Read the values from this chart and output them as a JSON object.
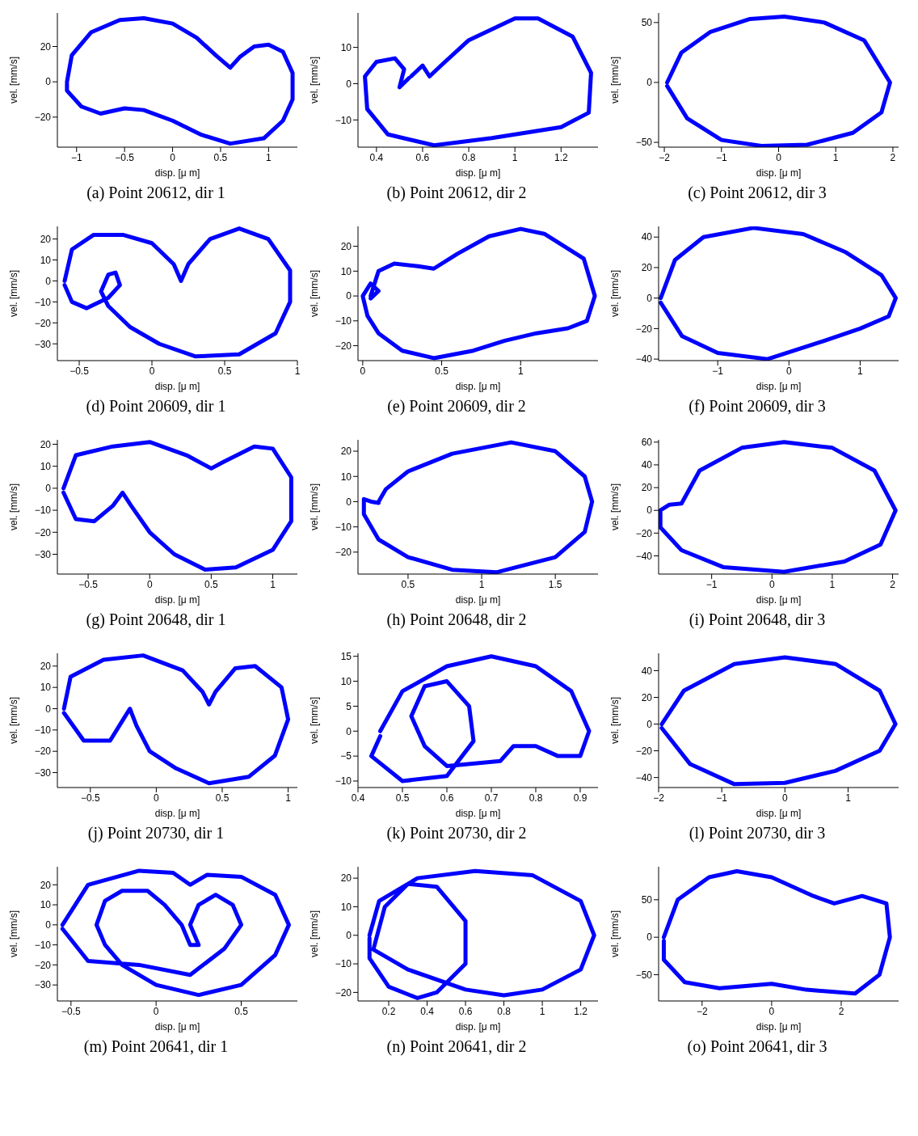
{
  "chart_data": [
    {
      "type": "line",
      "title": "(a) Point 20612, dir 1",
      "xlabel": "disp. [μ m]",
      "ylabel": "vel. [mm/s]",
      "xlim": [
        -1.2,
        1.3
      ],
      "ylim": [
        -37,
        39
      ],
      "xticks": [
        -1,
        -0.5,
        0,
        0.5,
        1
      ],
      "yticks": [
        -20,
        0,
        20
      ],
      "line_style": "solid",
      "series": [
        {
          "color": "#0000ff",
          "x": [
            -1.1,
            -1.05,
            -0.85,
            -0.55,
            -0.3,
            0,
            0.25,
            0.45,
            0.6,
            0.7,
            0.85,
            1.0,
            1.15,
            1.25,
            1.25,
            1.15,
            0.95,
            0.6,
            0.3,
            0,
            -0.3,
            -0.5,
            -0.75,
            -0.95,
            -1.1,
            -1.1
          ],
          "values": [
            0,
            15,
            28,
            35,
            36,
            33,
            25,
            15,
            8,
            14,
            20,
            21,
            17,
            5,
            -10,
            -22,
            -32,
            -35,
            -30,
            -22,
            -16,
            -15,
            -18,
            -14,
            -5,
            -1
          ]
        }
      ]
    },
    {
      "type": "line",
      "title": "(b) Point 20612, dir 2",
      "xlabel": "disp. [μ m]",
      "ylabel": "vel. [mm/s]",
      "xlim": [
        0.32,
        1.36
      ],
      "ylim": [
        -17.5,
        19.5
      ],
      "xticks": [
        0.4,
        0.6,
        0.8,
        1,
        1.2
      ],
      "yticks": [
        -10,
        0,
        10
      ],
      "line_style": "solid",
      "series": [
        {
          "color": "#0000ff",
          "x": [
            0.55,
            0.6,
            0.63,
            0.68,
            0.8,
            1.0,
            1.1,
            1.25,
            1.33,
            1.32,
            1.2,
            0.9,
            0.65,
            0.45,
            0.36,
            0.35,
            0.4,
            0.48,
            0.52,
            0.5,
            0.54
          ],
          "values": [
            2,
            5,
            2,
            5,
            12,
            18,
            18,
            13,
            3,
            -8,
            -12,
            -15,
            -17,
            -14,
            -7,
            2,
            6,
            7,
            4,
            -1,
            1.5
          ]
        }
      ]
    },
    {
      "type": "line",
      "title": "(c) Point 20612, dir 3",
      "xlabel": "disp. [μ m]",
      "ylabel": "vel. [mm/s]",
      "xlim": [
        -2.1,
        2.1
      ],
      "ylim": [
        -54,
        58
      ],
      "xticks": [
        -2,
        -1,
        0,
        1,
        2
      ],
      "yticks": [
        -50,
        0,
        50
      ],
      "line_style": "solid",
      "series": [
        {
          "color": "#0000ff",
          "x": [
            -1.95,
            -1.7,
            -1.2,
            -0.5,
            0.1,
            0.8,
            1.5,
            1.95,
            1.8,
            1.3,
            0.5,
            -0.3,
            -1.0,
            -1.6,
            -1.95
          ],
          "values": [
            0,
            25,
            42,
            53,
            55,
            50,
            35,
            0,
            -25,
            -42,
            -52,
            -53,
            -48,
            -30,
            -3
          ]
        }
      ]
    },
    {
      "type": "line",
      "title": "(d) Point 20609, dir 1",
      "xlabel": "disp. [μ m]",
      "ylabel": "vel. [mm/s]",
      "xlim": [
        -0.65,
        1.0
      ],
      "ylim": [
        -38,
        26
      ],
      "xticks": [
        -0.5,
        0,
        0.5,
        1
      ],
      "yticks": [
        -30,
        -20,
        -10,
        0,
        10,
        20
      ],
      "line_style": "solid",
      "series": [
        {
          "color": "#0000ff",
          "x": [
            -0.6,
            -0.55,
            -0.4,
            -0.2,
            0,
            0.15,
            0.2,
            0.25,
            0.4,
            0.6,
            0.8,
            0.95,
            0.95,
            0.85,
            0.6,
            0.3,
            0.05,
            -0.15,
            -0.3,
            -0.35,
            -0.3,
            -0.25,
            -0.22,
            -0.3,
            -0.45,
            -0.55,
            -0.6
          ],
          "values": [
            0,
            15,
            22,
            22,
            18,
            8,
            0,
            8,
            20,
            25,
            20,
            5,
            -10,
            -25,
            -35,
            -36,
            -30,
            -22,
            -12,
            -5,
            3,
            4,
            -2,
            -8,
            -13,
            -10,
            -2
          ]
        }
      ]
    },
    {
      "type": "line",
      "title": "(e) Point 20609, dir 2",
      "xlabel": "disp. [μ m]",
      "ylabel": "vel. [mm/s]",
      "xlim": [
        -0.03,
        1.49
      ],
      "ylim": [
        -26,
        28
      ],
      "xticks": [
        0,
        0.5,
        1
      ],
      "yticks": [
        -20,
        -10,
        0,
        10,
        20
      ],
      "line_style": "solid",
      "series": [
        {
          "color": "#0000ff",
          "x": [
            0.05,
            0.1,
            0.2,
            0.35,
            0.45,
            0.6,
            0.8,
            1.0,
            1.15,
            1.4,
            1.47,
            1.42,
            1.3,
            1.1,
            0.9,
            0.7,
            0.45,
            0.25,
            0.1,
            0.03,
            0,
            0.05,
            0.1,
            0.05
          ],
          "values": [
            0,
            10,
            13,
            12,
            11,
            17,
            24,
            27,
            25,
            15,
            0,
            -10,
            -13,
            -15,
            -18,
            -22,
            -25,
            -22,
            -15,
            -8,
            0,
            5,
            2,
            -1
          ]
        }
      ]
    },
    {
      "type": "line",
      "title": "(f) Point 20609, dir 3",
      "xlabel": "disp. [μ m]",
      "ylabel": "vel. [mm/s]",
      "xlim": [
        -1.83,
        1.54
      ],
      "ylim": [
        -41,
        47
      ],
      "xticks": [
        -1,
        0,
        1
      ],
      "yticks": [
        -40,
        -20,
        0,
        20,
        40
      ],
      "line_style": "solid",
      "series": [
        {
          "color": "#0000ff",
          "x": [
            -1.8,
            -1.6,
            -1.2,
            -0.5,
            0.2,
            0.8,
            1.3,
            1.5,
            1.4,
            1.0,
            0.5,
            -0.3,
            -1.0,
            -1.5,
            -1.8
          ],
          "values": [
            0,
            25,
            40,
            46,
            42,
            30,
            15,
            0,
            -12,
            -20,
            -28,
            -40,
            -36,
            -25,
            -3
          ]
        }
      ]
    },
    {
      "type": "line",
      "title": "(g) Point 20648, dir 1",
      "xlabel": "disp. [μ m]",
      "ylabel": "vel. [mm/s]",
      "xlim": [
        -0.75,
        1.2
      ],
      "ylim": [
        -39,
        22
      ],
      "xticks": [
        -0.5,
        0,
        0.5,
        1
      ],
      "yticks": [
        -30,
        -20,
        -10,
        0,
        10,
        20
      ],
      "line_style": "solid",
      "series": [
        {
          "color": "#0000ff",
          "x": [
            -0.7,
            -0.6,
            -0.3,
            0,
            0.3,
            0.5,
            0.6,
            0.85,
            1.0,
            1.15,
            1.15,
            1.0,
            0.7,
            0.45,
            0.2,
            0,
            -0.15,
            -0.22,
            -0.3,
            -0.45,
            -0.6,
            -0.7
          ],
          "values": [
            0,
            15,
            19,
            21,
            15,
            9,
            12,
            19,
            18,
            5,
            -15,
            -28,
            -36,
            -37,
            -30,
            -20,
            -8,
            -2,
            -8,
            -15,
            -14,
            -2
          ]
        }
      ]
    },
    {
      "type": "line",
      "title": "(h) Point 20648, dir 2",
      "xlabel": "disp. [μ m]",
      "ylabel": "vel. [mm/s]",
      "xlim": [
        0.16,
        1.79
      ],
      "ylim": [
        -28.7,
        24.5
      ],
      "xticks": [
        0.5,
        1,
        1.5
      ],
      "yticks": [
        -20,
        -10,
        0,
        10,
        20
      ],
      "line_style": "solid",
      "series": [
        {
          "color": "#0000ff",
          "x": [
            0.3,
            0.35,
            0.5,
            0.8,
            1.2,
            1.5,
            1.7,
            1.75,
            1.7,
            1.5,
            1.1,
            0.8,
            0.5,
            0.3,
            0.2,
            0.2,
            0.25,
            0.3
          ],
          "values": [
            0,
            5,
            12,
            19,
            23.5,
            20,
            10,
            0,
            -12,
            -22,
            -28,
            -27,
            -22,
            -15,
            -5,
            1,
            0,
            -0.5
          ]
        }
      ]
    },
    {
      "type": "line",
      "title": "(i) Point 20648, dir 3",
      "xlabel": "disp. [μ m]",
      "ylabel": "vel. [mm/s]",
      "xlim": [
        -1.88,
        2.1
      ],
      "ylim": [
        -56,
        62
      ],
      "xticks": [
        -1,
        0,
        1,
        2
      ],
      "yticks": [
        -40,
        -20,
        0,
        20,
        40,
        60
      ],
      "line_style": "solid",
      "series": [
        {
          "color": "#0000ff",
          "x": [
            -1.85,
            -1.7,
            -1.5,
            -1.2,
            -0.5,
            0.2,
            1,
            1.7,
            2.05,
            1.8,
            1.2,
            0.2,
            -0.8,
            -1.5,
            -1.85,
            -1.85
          ],
          "values": [
            0,
            5,
            6,
            35,
            55,
            60,
            55,
            35,
            0,
            -30,
            -45,
            -54,
            -50,
            -35,
            -15,
            -2
          ]
        }
      ]
    },
    {
      "type": "line",
      "title": "(j) Point 20730, dir 1",
      "xlabel": "disp. [μ m]",
      "ylabel": "vel. [mm/s]",
      "xlim": [
        -0.75,
        1.07
      ],
      "ylim": [
        -37,
        26
      ],
      "xticks": [
        -0.5,
        0,
        0.5,
        1
      ],
      "yticks": [
        -30,
        -20,
        -10,
        0,
        10,
        20
      ],
      "line_style": "solid",
      "series": [
        {
          "color": "#0000ff",
          "x": [
            -0.7,
            -0.65,
            -0.4,
            -0.1,
            0.2,
            0.35,
            0.4,
            0.45,
            0.6,
            0.75,
            0.95,
            1.0,
            0.9,
            0.7,
            0.4,
            0.15,
            -0.05,
            -0.15,
            -0.2,
            -0.25,
            -0.35,
            -0.55,
            -0.7
          ],
          "values": [
            0,
            15,
            23,
            25,
            18,
            8,
            2,
            8,
            19,
            20,
            10,
            -5,
            -22,
            -32,
            -35,
            -28,
            -20,
            -8,
            0,
            -5,
            -15,
            -15,
            -2
          ]
        }
      ]
    },
    {
      "type": "line",
      "title": "(k) Point 20730, dir 2",
      "xlabel": "disp. [μ m]",
      "ylabel": "vel. [mm/s]",
      "xlim": [
        0.4,
        0.94
      ],
      "ylim": [
        -11.3,
        15.6
      ],
      "xticks": [
        0.4,
        0.5,
        0.6,
        0.7,
        0.8,
        0.9
      ],
      "yticks": [
        -10,
        -5,
        0,
        5,
        10,
        15
      ],
      "line_style": "solid",
      "series": [
        {
          "color": "#0000ff",
          "x": [
            0.45,
            0.5,
            0.6,
            0.7,
            0.8,
            0.88,
            0.92,
            0.9,
            0.85,
            0.8,
            0.75,
            0.72,
            0.6,
            0.55,
            0.52,
            0.55,
            0.6,
            0.65,
            0.66,
            0.6,
            0.5,
            0.43,
            0.45
          ],
          "values": [
            0,
            8,
            13,
            15,
            13,
            8,
            0,
            -5,
            -5,
            -3,
            -3,
            -6,
            -7,
            -3,
            3,
            9,
            10,
            5,
            -2,
            -9,
            -10,
            -5,
            -1
          ]
        }
      ]
    },
    {
      "type": "line",
      "title": "(l) Point 20730, dir 3",
      "xlabel": "disp. [μ m]",
      "ylabel": "vel. [mm/s]",
      "xlim": [
        -2.0,
        1.8
      ],
      "ylim": [
        -47.5,
        53
      ],
      "xticks": [
        -2,
        -1,
        0,
        1
      ],
      "yticks": [
        -40,
        -20,
        0,
        20,
        40
      ],
      "line_style": "solid",
      "series": [
        {
          "color": "#0000ff",
          "x": [
            -1.95,
            -1.6,
            -0.8,
            0,
            0.8,
            1.5,
            1.75,
            1.5,
            0.8,
            0,
            -0.8,
            -1.5,
            -1.95
          ],
          "values": [
            0,
            25,
            45,
            50,
            45,
            25,
            0,
            -20,
            -35,
            -44,
            -45,
            -30,
            -3
          ]
        }
      ]
    },
    {
      "type": "line",
      "title": "(m) Point 20641, dir 1",
      "xlabel": "disp. [μ m]",
      "ylabel": "vel. [mm/s]",
      "xlim": [
        -0.58,
        0.83
      ],
      "ylim": [
        -38,
        29
      ],
      "xticks": [
        -0.5,
        0,
        0.5
      ],
      "yticks": [
        -30,
        -20,
        -10,
        0,
        10,
        20
      ],
      "line_style": "solid",
      "series": [
        {
          "color": "#0000ff",
          "x": [
            -0.55,
            -0.4,
            -0.1,
            0.1,
            0.2,
            0.3,
            0.5,
            0.7,
            0.78,
            0.7,
            0.5,
            0.25,
            0,
            -0.2,
            -0.3,
            -0.35,
            -0.3,
            -0.2,
            -0.05,
            0.05,
            0.15,
            0.2,
            0.25,
            0.2,
            0.25,
            0.35,
            0.45,
            0.5,
            0.4,
            0.2,
            -0.1,
            -0.4,
            -0.55
          ],
          "values": [
            0,
            20,
            27,
            26,
            20,
            25,
            24,
            15,
            0,
            -15,
            -30,
            -35,
            -30,
            -20,
            -10,
            0,
            12,
            17,
            17,
            10,
            0,
            -10,
            -10,
            0,
            10,
            15,
            10,
            0,
            -12,
            -25,
            -20,
            -18,
            -2
          ]
        }
      ]
    },
    {
      "type": "line",
      "title": "(n) Point 20641, dir 2",
      "xlabel": "disp. [μ m]",
      "ylabel": "vel. [mm/s]",
      "xlim": [
        0.04,
        1.29
      ],
      "ylim": [
        -23,
        24
      ],
      "xticks": [
        0.2,
        0.4,
        0.6,
        0.8,
        1,
        1.2
      ],
      "yticks": [
        -20,
        -10,
        0,
        10,
        20
      ],
      "line_style": "solid",
      "series": [
        {
          "color": "#0000ff",
          "x": [
            0.1,
            0.15,
            0.35,
            0.65,
            0.95,
            1.2,
            1.27,
            1.2,
            1.0,
            0.8,
            0.6,
            0.3,
            0.12,
            0.18,
            0.3,
            0.45,
            0.6,
            0.6,
            0.45,
            0.35,
            0.2,
            0.1,
            0.1
          ],
          "values": [
            0,
            12,
            20,
            22.5,
            21,
            12,
            0,
            -12,
            -19,
            -21,
            -19,
            -12,
            -5,
            10,
            18,
            17,
            5,
            -10,
            -20,
            -22,
            -18,
            -8,
            -1
          ]
        }
      ]
    },
    {
      "type": "line",
      "title": "(o) Point 20641, dir 3",
      "xlabel": "disp. [μ m]",
      "ylabel": "vel. [mm/s]",
      "xlim": [
        -3.25,
        3.65
      ],
      "ylim": [
        -85,
        94
      ],
      "xticks": [
        -2,
        0,
        2
      ],
      "yticks": [
        -50,
        0,
        50
      ],
      "line_style": "solid",
      "series": [
        {
          "color": "#0000ff",
          "x": [
            -3.1,
            -2.7,
            -1.8,
            -1,
            0,
            1.2,
            1.8,
            2.6,
            3.3,
            3.4,
            3.1,
            2.4,
            1,
            0,
            -1.5,
            -2.5,
            -3.1,
            -3.1
          ],
          "values": [
            0,
            50,
            80,
            88,
            80,
            55,
            45,
            55,
            45,
            0,
            -50,
            -75,
            -70,
            -62,
            -68,
            -60,
            -30,
            -5
          ]
        }
      ]
    }
  ]
}
